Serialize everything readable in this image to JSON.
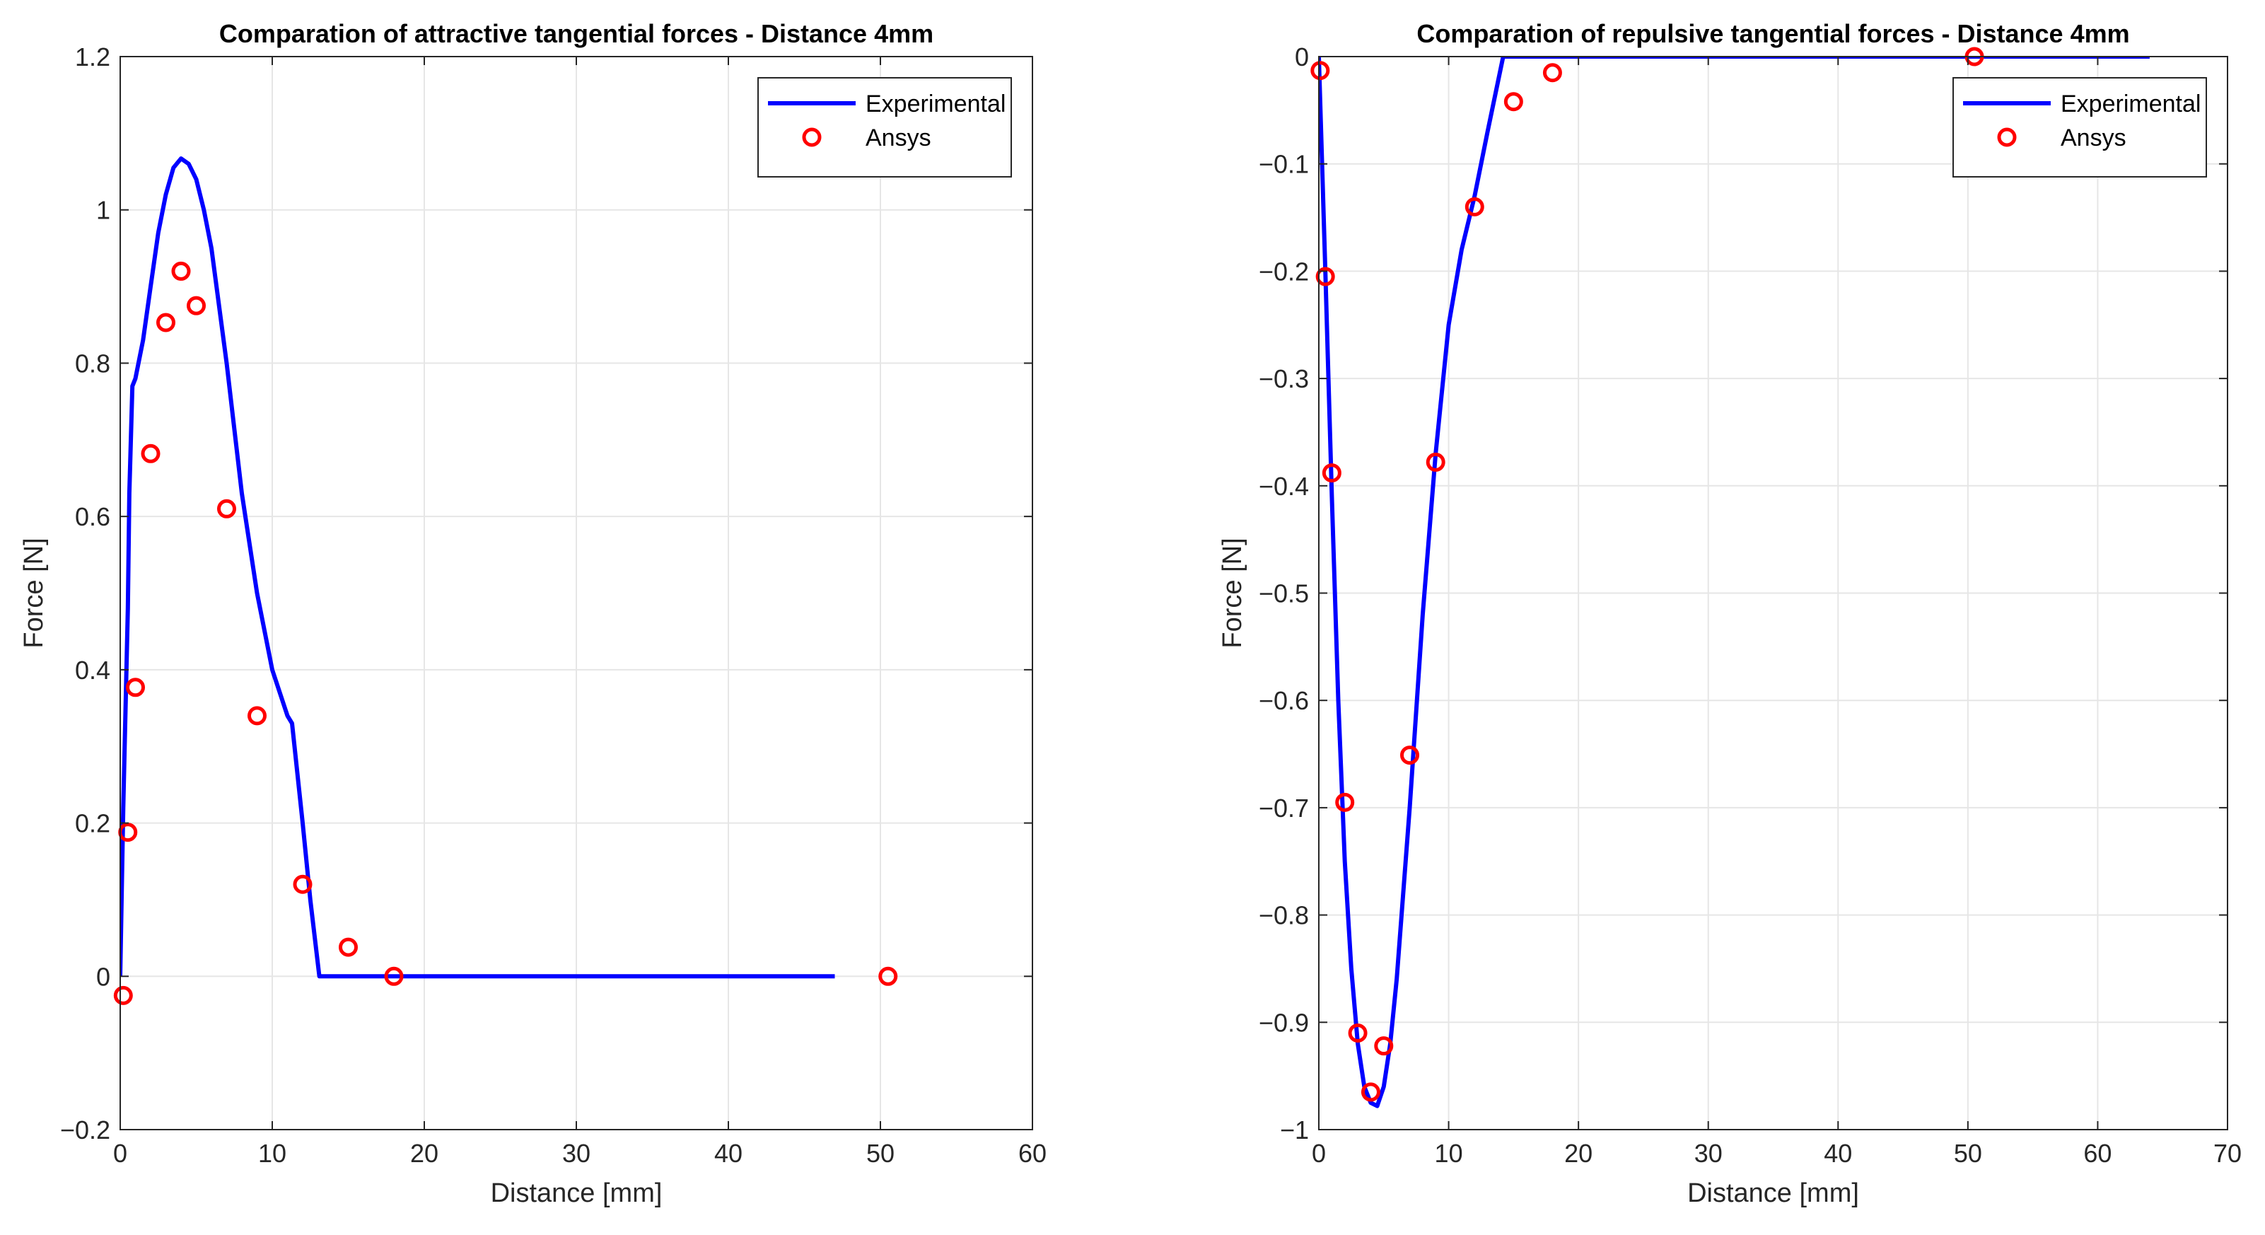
{
  "chart_data": [
    {
      "type": "line",
      "title": "Comparation of attractive tangential forces - Distance 4mm",
      "xlabel": "Distance [mm]",
      "ylabel": "Force [N]",
      "xlim": [
        0,
        60
      ],
      "ylim": [
        -0.2,
        1.2
      ],
      "xticks": [
        0,
        10,
        20,
        30,
        40,
        50,
        60
      ],
      "yticks": [
        -0.2,
        0,
        0.2,
        0.4,
        0.6,
        0.8,
        1,
        1.2
      ],
      "xtick_labels": [
        "0",
        "10",
        "20",
        "30",
        "40",
        "50",
        "60"
      ],
      "ytick_labels": [
        "−0.2",
        "0",
        "0.2",
        "0.4",
        "0.6",
        "0.8",
        "1",
        "1.2"
      ],
      "grid": true,
      "legend_position": "top-right",
      "series": [
        {
          "name": "Experimental",
          "style": "line",
          "color": "#0000ff",
          "x": [
            0,
            0.2,
            0.5,
            0.6,
            0.8,
            1,
            1.5,
            2,
            2.5,
            3,
            3.5,
            4,
            4.5,
            5,
            5.5,
            6,
            7,
            8,
            9,
            10,
            11,
            11.3,
            12,
            12.5,
            13.1,
            15,
            20,
            30,
            40,
            47
          ],
          "y": [
            0,
            0.22,
            0.48,
            0.63,
            0.77,
            0.78,
            0.83,
            0.9,
            0.97,
            1.02,
            1.055,
            1.067,
            1.06,
            1.04,
            1.0,
            0.95,
            0.8,
            0.63,
            0.5,
            0.4,
            0.34,
            0.33,
            0.2,
            0.1,
            0.0,
            0.0,
            0.0,
            0.0,
            0.0,
            0.0
          ]
        },
        {
          "name": "Ansys",
          "style": "marker",
          "color": "#ff0000",
          "x": [
            0.2,
            0.5,
            1,
            2,
            3,
            4,
            5,
            7,
            9,
            12,
            15,
            18,
            50.5
          ],
          "y": [
            -0.025,
            0.188,
            0.377,
            0.682,
            0.853,
            0.92,
            0.875,
            0.61,
            0.34,
            0.12,
            0.038,
            0.0,
            0.0
          ]
        }
      ]
    },
    {
      "type": "line",
      "title": "Comparation of repulsive tangential forces - Distance 4mm",
      "xlabel": "Distance [mm]",
      "ylabel": "Force [N]",
      "xlim": [
        0,
        70
      ],
      "ylim": [
        -1,
        0
      ],
      "xticks": [
        0,
        10,
        20,
        30,
        40,
        50,
        60,
        70
      ],
      "yticks": [
        -1,
        -0.9,
        -0.8,
        -0.7,
        -0.6,
        -0.5,
        -0.4,
        -0.3,
        -0.2,
        -0.1,
        0
      ],
      "xtick_labels": [
        "0",
        "10",
        "20",
        "30",
        "40",
        "50",
        "60",
        "70"
      ],
      "ytick_labels": [
        "−1",
        "−0.9",
        "−0.8",
        "−0.7",
        "−0.6",
        "−0.5",
        "−0.4",
        "−0.3",
        "−0.2",
        "−0.1",
        "0"
      ],
      "grid": true,
      "legend_position": "top-right",
      "series": [
        {
          "name": "Experimental",
          "style": "line",
          "color": "#0000ff",
          "x": [
            0,
            0.5,
            1,
            1.5,
            2,
            2.5,
            3,
            3.5,
            4,
            4.5,
            5,
            5.5,
            6,
            7,
            8,
            9,
            10,
            11,
            12,
            13,
            14.2,
            20,
            30,
            40,
            50,
            64
          ],
          "y": [
            0,
            -0.2,
            -0.41,
            -0.6,
            -0.75,
            -0.85,
            -0.92,
            -0.96,
            -0.975,
            -0.978,
            -0.96,
            -0.92,
            -0.86,
            -0.7,
            -0.52,
            -0.37,
            -0.25,
            -0.18,
            -0.13,
            -0.07,
            0.0,
            0.0,
            0.0,
            0.0,
            0.0,
            0.0
          ]
        },
        {
          "name": "Ansys",
          "style": "marker",
          "color": "#ff0000",
          "x": [
            0.1,
            0.5,
            1,
            2,
            3,
            4,
            5,
            7,
            9,
            12,
            15,
            18,
            50.5
          ],
          "y": [
            -0.013,
            -0.205,
            -0.388,
            -0.695,
            -0.91,
            -0.965,
            -0.922,
            -0.651,
            -0.378,
            -0.14,
            -0.042,
            -0.015,
            0.0
          ]
        }
      ]
    }
  ]
}
